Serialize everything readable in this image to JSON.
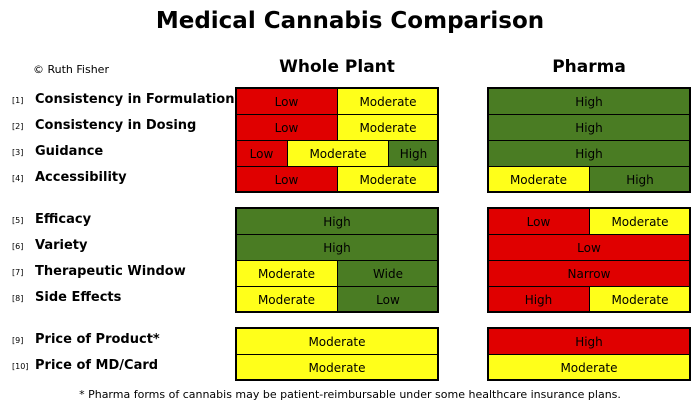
{
  "title": "Medical Cannabis Comparison",
  "copyright": "© Ruth Fisher",
  "columns": {
    "whole_plant": "Whole Plant",
    "pharma": "Pharma"
  },
  "colors": {
    "Low": "#e00000",
    "Moderate": "#ffff1a",
    "High": "#4a7c23",
    "Wide": "#4a7c23",
    "Narrow": "#e00000"
  },
  "rows": [
    {
      "num": "[1]",
      "label": "Consistency in Formulations",
      "whole_plant": [
        {
          "text": "Low",
          "level": "Low",
          "frac": 0.5
        },
        {
          "text": "Moderate",
          "level": "Moderate",
          "frac": 0.5
        }
      ],
      "pharma": [
        {
          "text": "High",
          "level": "High",
          "frac": 1
        }
      ]
    },
    {
      "num": "[2]",
      "label": "Consistency in Dosing",
      "whole_plant": [
        {
          "text": "Low",
          "level": "Low",
          "frac": 0.5
        },
        {
          "text": "Moderate",
          "level": "Moderate",
          "frac": 0.5
        }
      ],
      "pharma": [
        {
          "text": "High",
          "level": "High",
          "frac": 1
        }
      ]
    },
    {
      "num": "[3]",
      "label": "Guidance",
      "whole_plant": [
        {
          "text": "Low",
          "level": "Low",
          "frac": 0.25
        },
        {
          "text": "Moderate",
          "level": "Moderate",
          "frac": 0.5
        },
        {
          "text": "High",
          "level": "High",
          "frac": 0.25
        }
      ],
      "pharma": [
        {
          "text": "High",
          "level": "High",
          "frac": 1
        }
      ]
    },
    {
      "num": "[4]",
      "label": "Accessibility",
      "whole_plant": [
        {
          "text": "Low",
          "level": "Low",
          "frac": 0.5
        },
        {
          "text": "Moderate",
          "level": "Moderate",
          "frac": 0.5
        }
      ],
      "pharma": [
        {
          "text": "Moderate",
          "level": "Moderate",
          "frac": 0.5
        },
        {
          "text": "High",
          "level": "High",
          "frac": 0.5
        }
      ]
    },
    {
      "num": "[5]",
      "label": "Efficacy",
      "whole_plant": [
        {
          "text": "High",
          "level": "High",
          "frac": 1
        }
      ],
      "pharma": [
        {
          "text": "Low",
          "level": "Low",
          "frac": 0.5
        },
        {
          "text": "Moderate",
          "level": "Moderate",
          "frac": 0.5
        }
      ]
    },
    {
      "num": "[6]",
      "label": "Variety",
      "whole_plant": [
        {
          "text": "High",
          "level": "High",
          "frac": 1
        }
      ],
      "pharma": [
        {
          "text": "Low",
          "level": "Low",
          "frac": 1
        }
      ]
    },
    {
      "num": "[7]",
      "label": "Therapeutic Window",
      "whole_plant": [
        {
          "text": "Moderate",
          "level": "Moderate",
          "frac": 0.5
        },
        {
          "text": "Wide",
          "level": "Wide",
          "frac": 0.5
        }
      ],
      "pharma": [
        {
          "text": "Narrow",
          "level": "Narrow",
          "frac": 1
        }
      ]
    },
    {
      "num": "[8]",
      "label": "Side Effects",
      "whole_plant": [
        {
          "text": "Moderate",
          "level": "Moderate",
          "frac": 0.5
        },
        {
          "text": "Low",
          "level": "High",
          "frac": 0.5
        }
      ],
      "pharma": [
        {
          "text": "High",
          "level": "Low",
          "frac": 0.5
        },
        {
          "text": "Moderate",
          "level": "Moderate",
          "frac": 0.5
        }
      ]
    },
    {
      "num": "[9]",
      "label": "Price of Product*",
      "whole_plant": [
        {
          "text": "Moderate",
          "level": "Moderate",
          "frac": 1
        }
      ],
      "pharma": [
        {
          "text": "High",
          "level": "Low",
          "frac": 1
        }
      ]
    },
    {
      "num": "[10]",
      "label": "Price of MD/Card",
      "whole_plant": [
        {
          "text": "Moderate",
          "level": "Moderate",
          "frac": 1
        }
      ],
      "pharma": [
        {
          "text": "Moderate",
          "level": "Moderate",
          "frac": 1
        }
      ]
    }
  ],
  "footnote": "* Pharma forms of cannabis may be patient-reimbursable under some healthcare insurance plans."
}
